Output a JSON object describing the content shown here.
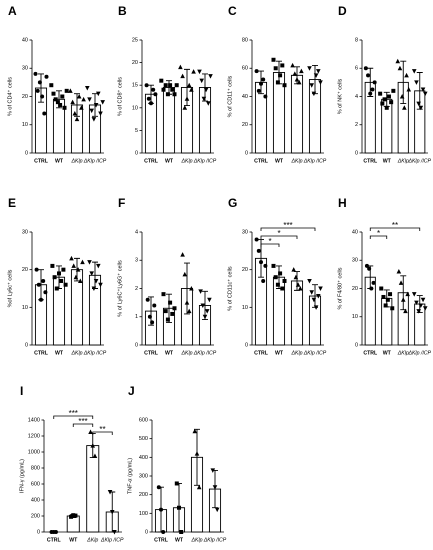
{
  "chart_data": [
    {
      "type": "bar",
      "label": "A",
      "ylabel": "% of CD4⁺ cells",
      "categories": [
        "CTRL",
        "WT",
        "ΔKlp",
        "ΔKlp /ICP"
      ],
      "values": [
        23,
        19,
        17,
        17
      ],
      "errors": [
        5,
        3,
        4,
        4
      ],
      "points": [
        [
          28,
          22,
          25,
          20,
          14,
          27
        ],
        [
          24,
          21,
          19,
          18,
          17,
          20,
          16,
          22
        ],
        [
          22,
          18,
          14,
          12,
          20,
          16,
          19
        ],
        [
          23,
          19,
          15,
          12,
          17,
          21,
          14,
          18
        ]
      ],
      "ylim": [
        0,
        40
      ],
      "yticks": [
        0,
        10,
        20,
        30,
        40
      ]
    },
    {
      "type": "bar",
      "label": "B",
      "ylabel": "% of CD8⁺ cells",
      "categories": [
        "CTRL",
        "WT",
        "ΔKlp",
        "ΔKlp /ICP"
      ],
      "values": [
        13,
        14.5,
        14.5,
        14.5
      ],
      "errors": [
        2,
        1.5,
        4,
        3
      ],
      "points": [
        [
          15,
          12,
          11,
          14,
          13
        ],
        [
          16,
          14,
          15,
          13,
          15,
          14,
          13,
          15
        ],
        [
          19,
          17,
          10,
          12,
          15,
          14,
          18
        ],
        [
          18,
          16,
          12,
          14,
          11,
          17
        ]
      ],
      "ylim": [
        0,
        25
      ],
      "yticks": [
        0,
        5,
        10,
        15,
        20,
        25
      ]
    },
    {
      "type": "bar",
      "label": "C",
      "ylabel": "% of CD11⁺ cells",
      "categories": [
        "CTRL",
        "WT",
        "ΔKlp",
        "ΔKlp /ICP"
      ],
      "values": [
        50,
        57,
        55,
        52
      ],
      "errors": [
        8,
        8,
        6,
        10
      ],
      "points": [
        [
          58,
          44,
          49,
          52,
          40
        ],
        [
          66,
          60,
          50,
          55,
          62,
          48
        ],
        [
          62,
          56,
          52,
          50,
          58
        ],
        [
          60,
          48,
          42,
          55,
          58,
          50
        ]
      ],
      "ylim": [
        0,
        80
      ],
      "yticks": [
        0,
        20,
        40,
        60,
        80
      ]
    },
    {
      "type": "bar",
      "label": "D",
      "ylabel": "% of NK⁺ cells",
      "categories": [
        "CTRL",
        "WT",
        "ΔKlp",
        "ΔKlp /ICP"
      ],
      "values": [
        5,
        3.8,
        5,
        4.4
      ],
      "errors": [
        1,
        0.5,
        1.5,
        1.3
      ],
      "points": [
        [
          6,
          5.5,
          4.2,
          4.5,
          5
        ],
        [
          4.2,
          3.5,
          3.8,
          3.2,
          4,
          3.6,
          4.4
        ],
        [
          6.5,
          6,
          4,
          3.2,
          5.5,
          4.5
        ],
        [
          5.8,
          5,
          3.5,
          3.2,
          4.5,
          4.2
        ]
      ],
      "ylim": [
        0,
        8
      ],
      "yticks": [
        0,
        2,
        4,
        6,
        8
      ]
    },
    {
      "type": "bar",
      "label": "E",
      "ylabel": "%of Ly6c⁺ cells",
      "categories": [
        "CTRL",
        "WT",
        "ΔKlp",
        "ΔKlp /ICP"
      ],
      "values": [
        16,
        18,
        20,
        18.5
      ],
      "errors": [
        4,
        3,
        3,
        3.5
      ],
      "points": [
        [
          20,
          16,
          12,
          17,
          14
        ],
        [
          21,
          18,
          15,
          19,
          17,
          20,
          16
        ],
        [
          23,
          21,
          18,
          20,
          17,
          22
        ],
        [
          22,
          19,
          15,
          17,
          21,
          16
        ]
      ],
      "ylim": [
        0,
        30
      ],
      "yticks": [
        0,
        10,
        20,
        30
      ]
    },
    {
      "type": "bar",
      "label": "F",
      "ylabel": "% of Ly6C⁺Ly6G⁺ cells",
      "categories": [
        "CTRL",
        "WT",
        "ΔKlp",
        "ΔKlp /ICP"
      ],
      "values": [
        1.2,
        1.3,
        2,
        1.4
      ],
      "errors": [
        0.5,
        0.5,
        0.9,
        0.5
      ],
      "points": [
        [
          1.6,
          1.0,
          0.8,
          1.4
        ],
        [
          1.8,
          1.2,
          0.9,
          1.5,
          1.1,
          1.3
        ],
        [
          3.2,
          2.5,
          1.5,
          1.2,
          2.0
        ],
        [
          1.9,
          1.4,
          1.0,
          1.2,
          1.6
        ]
      ],
      "ylim": [
        0,
        4
      ],
      "yticks": [
        0,
        1,
        2,
        3,
        4
      ]
    },
    {
      "type": "bar",
      "label": "G",
      "ylabel": "% of CD11c⁺ cells",
      "categories": [
        "CTRL",
        "WT",
        "ΔKlp",
        "ΔKlp /ICP"
      ],
      "values": [
        23,
        18,
        17,
        13
      ],
      "errors": [
        5,
        3,
        2.5,
        3
      ],
      "points": [
        [
          28,
          25,
          22,
          17,
          21
        ],
        [
          21,
          18,
          16,
          19,
          15,
          17
        ],
        [
          20,
          18,
          16,
          15
        ],
        [
          17,
          14,
          12,
          10,
          13,
          15
        ]
      ],
      "ylim": [
        0,
        30
      ],
      "yticks": [
        0,
        10,
        20,
        30
      ],
      "annotations": [
        {
          "between": [
            "CTRL",
            "ΔKlp /ICP"
          ],
          "text": "***"
        },
        {
          "between": [
            "CTRL",
            "ΔKlp"
          ],
          "text": "*"
        },
        {
          "between": [
            "CTRL",
            "WT"
          ],
          "text": "*"
        }
      ]
    },
    {
      "type": "bar",
      "label": "H",
      "ylabel": "% of F4/80⁺ cells",
      "categories": [
        "CTRL",
        "WT",
        "ΔKlp",
        "ΔKlp /ICP"
      ],
      "values": [
        24,
        16.5,
        18.5,
        14.5
      ],
      "errors": [
        4,
        3,
        6,
        3
      ],
      "points": [
        [
          28,
          27,
          20,
          22
        ],
        [
          20,
          17,
          14,
          16,
          18,
          13
        ],
        [
          26,
          22,
          16,
          12,
          18
        ],
        [
          18,
          15,
          12,
          14,
          16,
          13
        ]
      ],
      "ylim": [
        0,
        40
      ],
      "yticks": [
        0,
        10,
        20,
        30,
        40
      ],
      "annotations": [
        {
          "between": [
            "CTRL",
            "ΔKlp /ICP"
          ],
          "text": "**"
        },
        {
          "between": [
            "CTRL",
            "WT"
          ],
          "text": "*"
        }
      ]
    },
    {
      "type": "bar",
      "label": "I",
      "ylabel": "IFN-γ (pg/mL)",
      "categories": [
        "CTRL",
        "WT",
        "ΔKlp",
        "ΔKlp /ICP"
      ],
      "values": [
        0,
        200,
        1080,
        250
      ],
      "errors": [
        2,
        20,
        150,
        250
      ],
      "points": [
        [
          0,
          0,
          0
        ],
        [
          190,
          210,
          205
        ],
        [
          1250,
          1080,
          950
        ],
        [
          500,
          250,
          0
        ]
      ],
      "ylim": [
        0,
        1400
      ],
      "yticks": [
        0,
        200,
        400,
        600,
        800,
        1000,
        1200,
        1400
      ],
      "annotations": [
        {
          "between": [
            "CTRL",
            "ΔKlp"
          ],
          "text": "***"
        },
        {
          "between": [
            "WT",
            "ΔKlp"
          ],
          "text": "***"
        },
        {
          "between": [
            "ΔKlp",
            "ΔKlp /ICP"
          ],
          "text": "**"
        }
      ]
    },
    {
      "type": "bar",
      "label": "J",
      "ylabel": "TNF-α (pg/mL)",
      "categories": [
        "CTRL",
        "WT",
        "ΔKlp",
        "ΔKlp /ICP"
      ],
      "values": [
        120,
        130,
        400,
        230
      ],
      "errors": [
        120,
        130,
        150,
        100
      ],
      "points": [
        [
          240,
          120,
          0
        ],
        [
          260,
          130,
          0
        ],
        [
          540,
          420,
          240
        ],
        [
          330,
          240,
          120
        ]
      ],
      "ylim": [
        0,
        600
      ],
      "yticks": [
        0,
        100,
        200,
        300,
        400,
        500,
        600
      ]
    }
  ]
}
